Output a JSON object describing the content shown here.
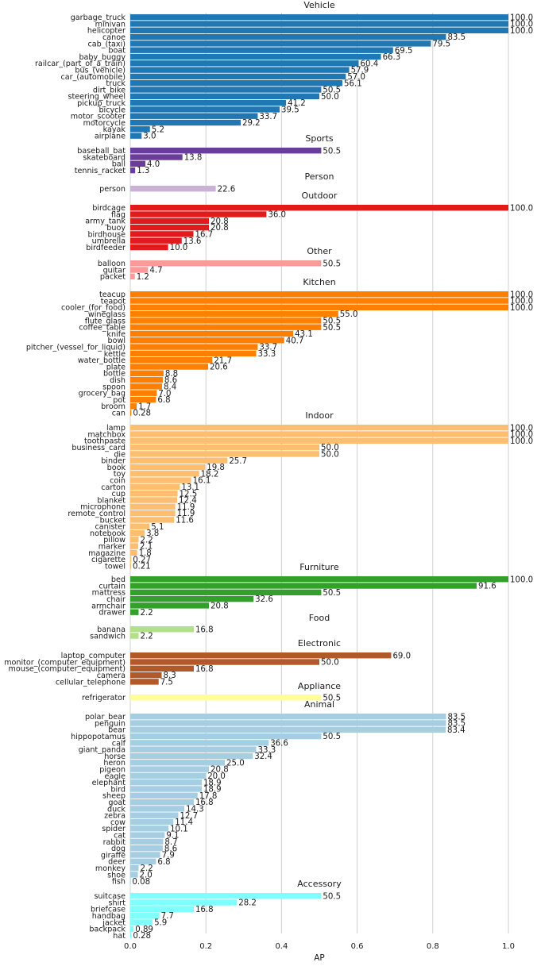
{
  "chart_data": {
    "type": "bar",
    "orientation": "horizontal",
    "xlabel": "AP",
    "xlim": [
      0,
      1.0
    ],
    "xticks": [
      "0.0",
      "0.2",
      "0.4",
      "0.6",
      "0.8",
      "1.0"
    ],
    "grid": "vertical",
    "value_label_scale": 100,
    "groups": [
      {
        "title": "Vehicle",
        "color": "#1f77b4",
        "items": [
          {
            "category": "garbage_truck",
            "value": 1.0,
            "label": "100.0"
          },
          {
            "category": "minivan",
            "value": 1.0,
            "label": "100.0"
          },
          {
            "category": "helicopter",
            "value": 1.0,
            "label": "100.0"
          },
          {
            "category": "canoe",
            "value": 0.835,
            "label": "83.5"
          },
          {
            "category": "cab_(taxi)",
            "value": 0.795,
            "label": "79.5"
          },
          {
            "category": "boat",
            "value": 0.695,
            "label": "69.5"
          },
          {
            "category": "baby_buggy",
            "value": 0.663,
            "label": "66.3"
          },
          {
            "category": "railcar_(part_of_a_train)",
            "value": 0.604,
            "label": "60.4"
          },
          {
            "category": "bus_(vehicle)",
            "value": 0.579,
            "label": "57.9"
          },
          {
            "category": "car_(automobile)",
            "value": 0.57,
            "label": "57.0"
          },
          {
            "category": "truck",
            "value": 0.561,
            "label": "56.1"
          },
          {
            "category": "dirt_bike",
            "value": 0.505,
            "label": "50.5"
          },
          {
            "category": "steering_wheel",
            "value": 0.5,
            "label": "50.0"
          },
          {
            "category": "pickup_truck",
            "value": 0.412,
            "label": "41.2"
          },
          {
            "category": "bicycle",
            "value": 0.395,
            "label": "39.5"
          },
          {
            "category": "motor_scooter",
            "value": 0.337,
            "label": "33.7"
          },
          {
            "category": "motorcycle",
            "value": 0.292,
            "label": "29.2"
          },
          {
            "category": "kayak",
            "value": 0.052,
            "label": "5.2"
          },
          {
            "category": "airplane",
            "value": 0.03,
            "label": "3.0"
          }
        ]
      },
      {
        "title": "Sports",
        "color": "#6a3d9a",
        "items": [
          {
            "category": "baseball_bat",
            "value": 0.505,
            "label": "50.5"
          },
          {
            "category": "skateboard",
            "value": 0.138,
            "label": "13.8"
          },
          {
            "category": "ball",
            "value": 0.04,
            "label": "4.0"
          },
          {
            "category": "tennis_racket",
            "value": 0.013,
            "label": "1.3"
          }
        ]
      },
      {
        "title": "Person",
        "color": "#cab2d6",
        "items": [
          {
            "category": "person",
            "value": 0.226,
            "label": "22.6"
          }
        ]
      },
      {
        "title": "Outdoor",
        "color": "#e31a1c",
        "items": [
          {
            "category": "birdcage",
            "value": 1.0,
            "label": "100.0"
          },
          {
            "category": "flag",
            "value": 0.36,
            "label": "36.0"
          },
          {
            "category": "army_tank",
            "value": 0.208,
            "label": "20.8"
          },
          {
            "category": "buoy",
            "value": 0.208,
            "label": "20.8"
          },
          {
            "category": "birdhouse",
            "value": 0.167,
            "label": "16.7"
          },
          {
            "category": "umbrella",
            "value": 0.136,
            "label": "13.6"
          },
          {
            "category": "birdfeeder",
            "value": 0.1,
            "label": "10.0"
          }
        ]
      },
      {
        "title": "Other",
        "color": "#fb9a99",
        "items": [
          {
            "category": "balloon",
            "value": 0.505,
            "label": "50.5"
          },
          {
            "category": "guitar",
            "value": 0.047,
            "label": "4.7"
          },
          {
            "category": "packet",
            "value": 0.012,
            "label": "1.2"
          }
        ]
      },
      {
        "title": "Kitchen",
        "color": "#ff7f00",
        "items": [
          {
            "category": "teacup",
            "value": 1.0,
            "label": "100.0"
          },
          {
            "category": "teapot",
            "value": 1.0,
            "label": "100.0"
          },
          {
            "category": "cooler_(for_food)",
            "value": 1.0,
            "label": "100.0"
          },
          {
            "category": "wineglass",
            "value": 0.55,
            "label": "55.0"
          },
          {
            "category": "flute_glass",
            "value": 0.505,
            "label": "50.5"
          },
          {
            "category": "coffee_table",
            "value": 0.505,
            "label": "50.5"
          },
          {
            "category": "knife",
            "value": 0.431,
            "label": "43.1"
          },
          {
            "category": "bowl",
            "value": 0.407,
            "label": "40.7"
          },
          {
            "category": "pitcher_(vessel_for_liquid)",
            "value": 0.337,
            "label": "33.7"
          },
          {
            "category": "kettle",
            "value": 0.333,
            "label": "33.3"
          },
          {
            "category": "water_bottle",
            "value": 0.217,
            "label": "21.7"
          },
          {
            "category": "plate",
            "value": 0.206,
            "label": "20.6"
          },
          {
            "category": "bottle",
            "value": 0.088,
            "label": "8.8"
          },
          {
            "category": "dish",
            "value": 0.086,
            "label": "8.6"
          },
          {
            "category": "spoon",
            "value": 0.084,
            "label": "8.4"
          },
          {
            "category": "grocery_bag",
            "value": 0.07,
            "label": "7.0"
          },
          {
            "category": "pot",
            "value": 0.068,
            "label": "6.8"
          },
          {
            "category": "broom",
            "value": 0.017,
            "label": "1.7"
          },
          {
            "category": "can",
            "value": 0.0028,
            "label": "0.28"
          }
        ]
      },
      {
        "title": "Indoor",
        "color": "#fdbf6f",
        "items": [
          {
            "category": "lamp",
            "value": 1.0,
            "label": "100.0"
          },
          {
            "category": "matchbox",
            "value": 1.0,
            "label": "100.0"
          },
          {
            "category": "toothpaste",
            "value": 1.0,
            "label": "100.0"
          },
          {
            "category": "business_card",
            "value": 0.5,
            "label": "50.0"
          },
          {
            "category": "die",
            "value": 0.5,
            "label": "50.0"
          },
          {
            "category": "binder",
            "value": 0.257,
            "label": "25.7"
          },
          {
            "category": "book",
            "value": 0.198,
            "label": "19.8"
          },
          {
            "category": "toy",
            "value": 0.182,
            "label": "18.2"
          },
          {
            "category": "coin",
            "value": 0.161,
            "label": "16.1"
          },
          {
            "category": "carton",
            "value": 0.131,
            "label": "13.1"
          },
          {
            "category": "cup",
            "value": 0.125,
            "label": "12.5"
          },
          {
            "category": "blanket",
            "value": 0.124,
            "label": "12.4"
          },
          {
            "category": "microphone",
            "value": 0.119,
            "label": "11.9"
          },
          {
            "category": "remote_control",
            "value": 0.119,
            "label": "11.9"
          },
          {
            "category": "bucket",
            "value": 0.116,
            "label": "11.6"
          },
          {
            "category": "canister",
            "value": 0.051,
            "label": "5.1"
          },
          {
            "category": "notebook",
            "value": 0.038,
            "label": "3.8"
          },
          {
            "category": "pillow",
            "value": 0.022,
            "label": "2.2"
          },
          {
            "category": "marker",
            "value": 0.021,
            "label": "2.1"
          },
          {
            "category": "magazine",
            "value": 0.018,
            "label": "1.8"
          },
          {
            "category": "cigarette",
            "value": 0.0027,
            "label": "0.27"
          },
          {
            "category": "towel",
            "value": 0.0021,
            "label": "0.21"
          }
        ]
      },
      {
        "title": "Furniture",
        "color": "#33a02c",
        "items": [
          {
            "category": "bed",
            "value": 1.0,
            "label": "100.0"
          },
          {
            "category": "curtain",
            "value": 0.916,
            "label": "91.6"
          },
          {
            "category": "mattress",
            "value": 0.505,
            "label": "50.5"
          },
          {
            "category": "chair",
            "value": 0.326,
            "label": "32.6"
          },
          {
            "category": "armchair",
            "value": 0.208,
            "label": "20.8"
          },
          {
            "category": "drawer",
            "value": 0.022,
            "label": "2.2"
          }
        ]
      },
      {
        "title": "Food",
        "color": "#b2df8a",
        "items": [
          {
            "category": "banana",
            "value": 0.168,
            "label": "16.8"
          },
          {
            "category": "sandwich",
            "value": 0.022,
            "label": "2.2"
          }
        ]
      },
      {
        "title": "Electronic",
        "color": "#b15928",
        "items": [
          {
            "category": "laptop_computer",
            "value": 0.69,
            "label": "69.0"
          },
          {
            "category": "monitor_(computer_equipment)",
            "value": 0.5,
            "label": "50.0"
          },
          {
            "category": "mouse_(computer_equipment)",
            "value": 0.168,
            "label": "16.8"
          },
          {
            "category": "camera",
            "value": 0.083,
            "label": "8.3"
          },
          {
            "category": "cellular_telephone",
            "value": 0.075,
            "label": "7.5"
          }
        ]
      },
      {
        "title": "Appliance",
        "color": "#ffff99",
        "items": [
          {
            "category": "refrigerator",
            "value": 0.505,
            "label": "50.5"
          }
        ]
      },
      {
        "title": "Animal",
        "color": "#a6cee3",
        "items": [
          {
            "category": "polar_bear",
            "value": 0.835,
            "label": "83.5"
          },
          {
            "category": "penguin",
            "value": 0.835,
            "label": "83.5"
          },
          {
            "category": "bear",
            "value": 0.834,
            "label": "83.4"
          },
          {
            "category": "hippopotamus",
            "value": 0.505,
            "label": "50.5"
          },
          {
            "category": "calf",
            "value": 0.366,
            "label": "36.6"
          },
          {
            "category": "giant_panda",
            "value": 0.333,
            "label": "33.3"
          },
          {
            "category": "horse",
            "value": 0.324,
            "label": "32.4"
          },
          {
            "category": "heron",
            "value": 0.25,
            "label": "25.0"
          },
          {
            "category": "pigeon",
            "value": 0.208,
            "label": "20.8"
          },
          {
            "category": "eagle",
            "value": 0.2,
            "label": "20.0"
          },
          {
            "category": "elephant",
            "value": 0.189,
            "label": "18.9"
          },
          {
            "category": "bird",
            "value": 0.189,
            "label": "18.9"
          },
          {
            "category": "sheep",
            "value": 0.178,
            "label": "17.8"
          },
          {
            "category": "goat",
            "value": 0.168,
            "label": "16.8"
          },
          {
            "category": "duck",
            "value": 0.143,
            "label": "14.3"
          },
          {
            "category": "zebra",
            "value": 0.127,
            "label": "12.7"
          },
          {
            "category": "cow",
            "value": 0.114,
            "label": "11.4"
          },
          {
            "category": "spider",
            "value": 0.101,
            "label": "10.1"
          },
          {
            "category": "cat",
            "value": 0.091,
            "label": "9.1"
          },
          {
            "category": "rabbit",
            "value": 0.087,
            "label": "8.7"
          },
          {
            "category": "dog",
            "value": 0.086,
            "label": "8.6"
          },
          {
            "category": "giraffe",
            "value": 0.079,
            "label": "7.9"
          },
          {
            "category": "deer",
            "value": 0.068,
            "label": "6.8"
          },
          {
            "category": "monkey",
            "value": 0.022,
            "label": "2.2"
          },
          {
            "category": "shoe",
            "value": 0.02,
            "label": "2.0"
          },
          {
            "category": "fish",
            "value": 0.0008,
            "label": "0.08"
          }
        ]
      },
      {
        "title": "Accessory",
        "color": "#80ffff",
        "items": [
          {
            "category": "suitcase",
            "value": 0.505,
            "label": "50.5"
          },
          {
            "category": "shirt",
            "value": 0.282,
            "label": "28.2"
          },
          {
            "category": "briefcase",
            "value": 0.168,
            "label": "16.8"
          },
          {
            "category": "handbag",
            "value": 0.077,
            "label": "7.7"
          },
          {
            "category": "jacket",
            "value": 0.059,
            "label": "5.9"
          },
          {
            "category": "backpack",
            "value": 0.0089,
            "label": "0.89"
          },
          {
            "category": "hat",
            "value": 0.0028,
            "label": "0.28"
          }
        ]
      }
    ]
  }
}
